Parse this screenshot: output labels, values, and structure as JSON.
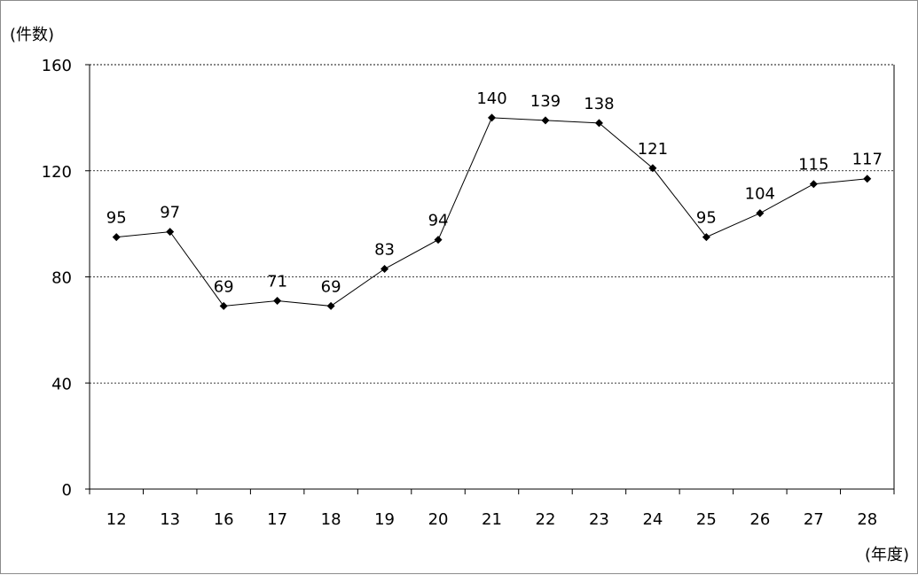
{
  "chart_data": {
    "type": "line",
    "ylabel": "(件数)",
    "xlabel": "(年度)",
    "categories": [
      "12",
      "13",
      "16",
      "17",
      "18",
      "19",
      "20",
      "21",
      "22",
      "23",
      "24",
      "25",
      "26",
      "27",
      "28"
    ],
    "series": [
      {
        "values": [
          95,
          97,
          69,
          71,
          69,
          83,
          94,
          140,
          139,
          138,
          121,
          95,
          104,
          115,
          117
        ]
      }
    ],
    "ylim": [
      0,
      160
    ],
    "yticks": [
      "0",
      "40",
      "80",
      "120",
      "160"
    ],
    "grid": "horizontal dashed",
    "colors": {
      "line": "#000000",
      "grid": "#000000",
      "marker": "#000000"
    }
  }
}
